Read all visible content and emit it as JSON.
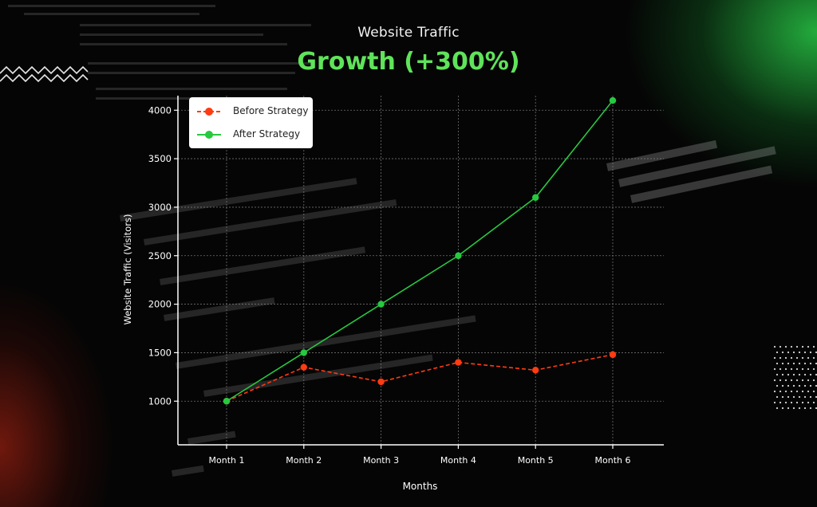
{
  "title": "Website Traffic",
  "subtitle": "Growth (+300%)",
  "colors": {
    "before": "#ff3b12",
    "after": "#27c93f",
    "subtitle": "#5fe35a",
    "grid": "#8a8a8a"
  },
  "chart_data": {
    "type": "line",
    "title": "Website Traffic",
    "subtitle": "Growth (+300%)",
    "xlabel": "Months",
    "ylabel": "Website Traffic (Visitors)",
    "categories": [
      "Month 1",
      "Month 2",
      "Month 3",
      "Month 4",
      "Month 5",
      "Month 6"
    ],
    "ylim": [
      550,
      4150
    ],
    "yticks": [
      1000,
      1500,
      2000,
      2500,
      3000,
      3500,
      4000
    ],
    "grid": true,
    "legend": "top-left",
    "series": [
      {
        "name": "Before Strategy",
        "style": "dashed",
        "values": [
          1000,
          1350,
          1200,
          1400,
          1320,
          1480
        ]
      },
      {
        "name": "After Strategy",
        "style": "solid",
        "values": [
          1000,
          1500,
          2000,
          2500,
          3100,
          4100
        ]
      }
    ]
  }
}
